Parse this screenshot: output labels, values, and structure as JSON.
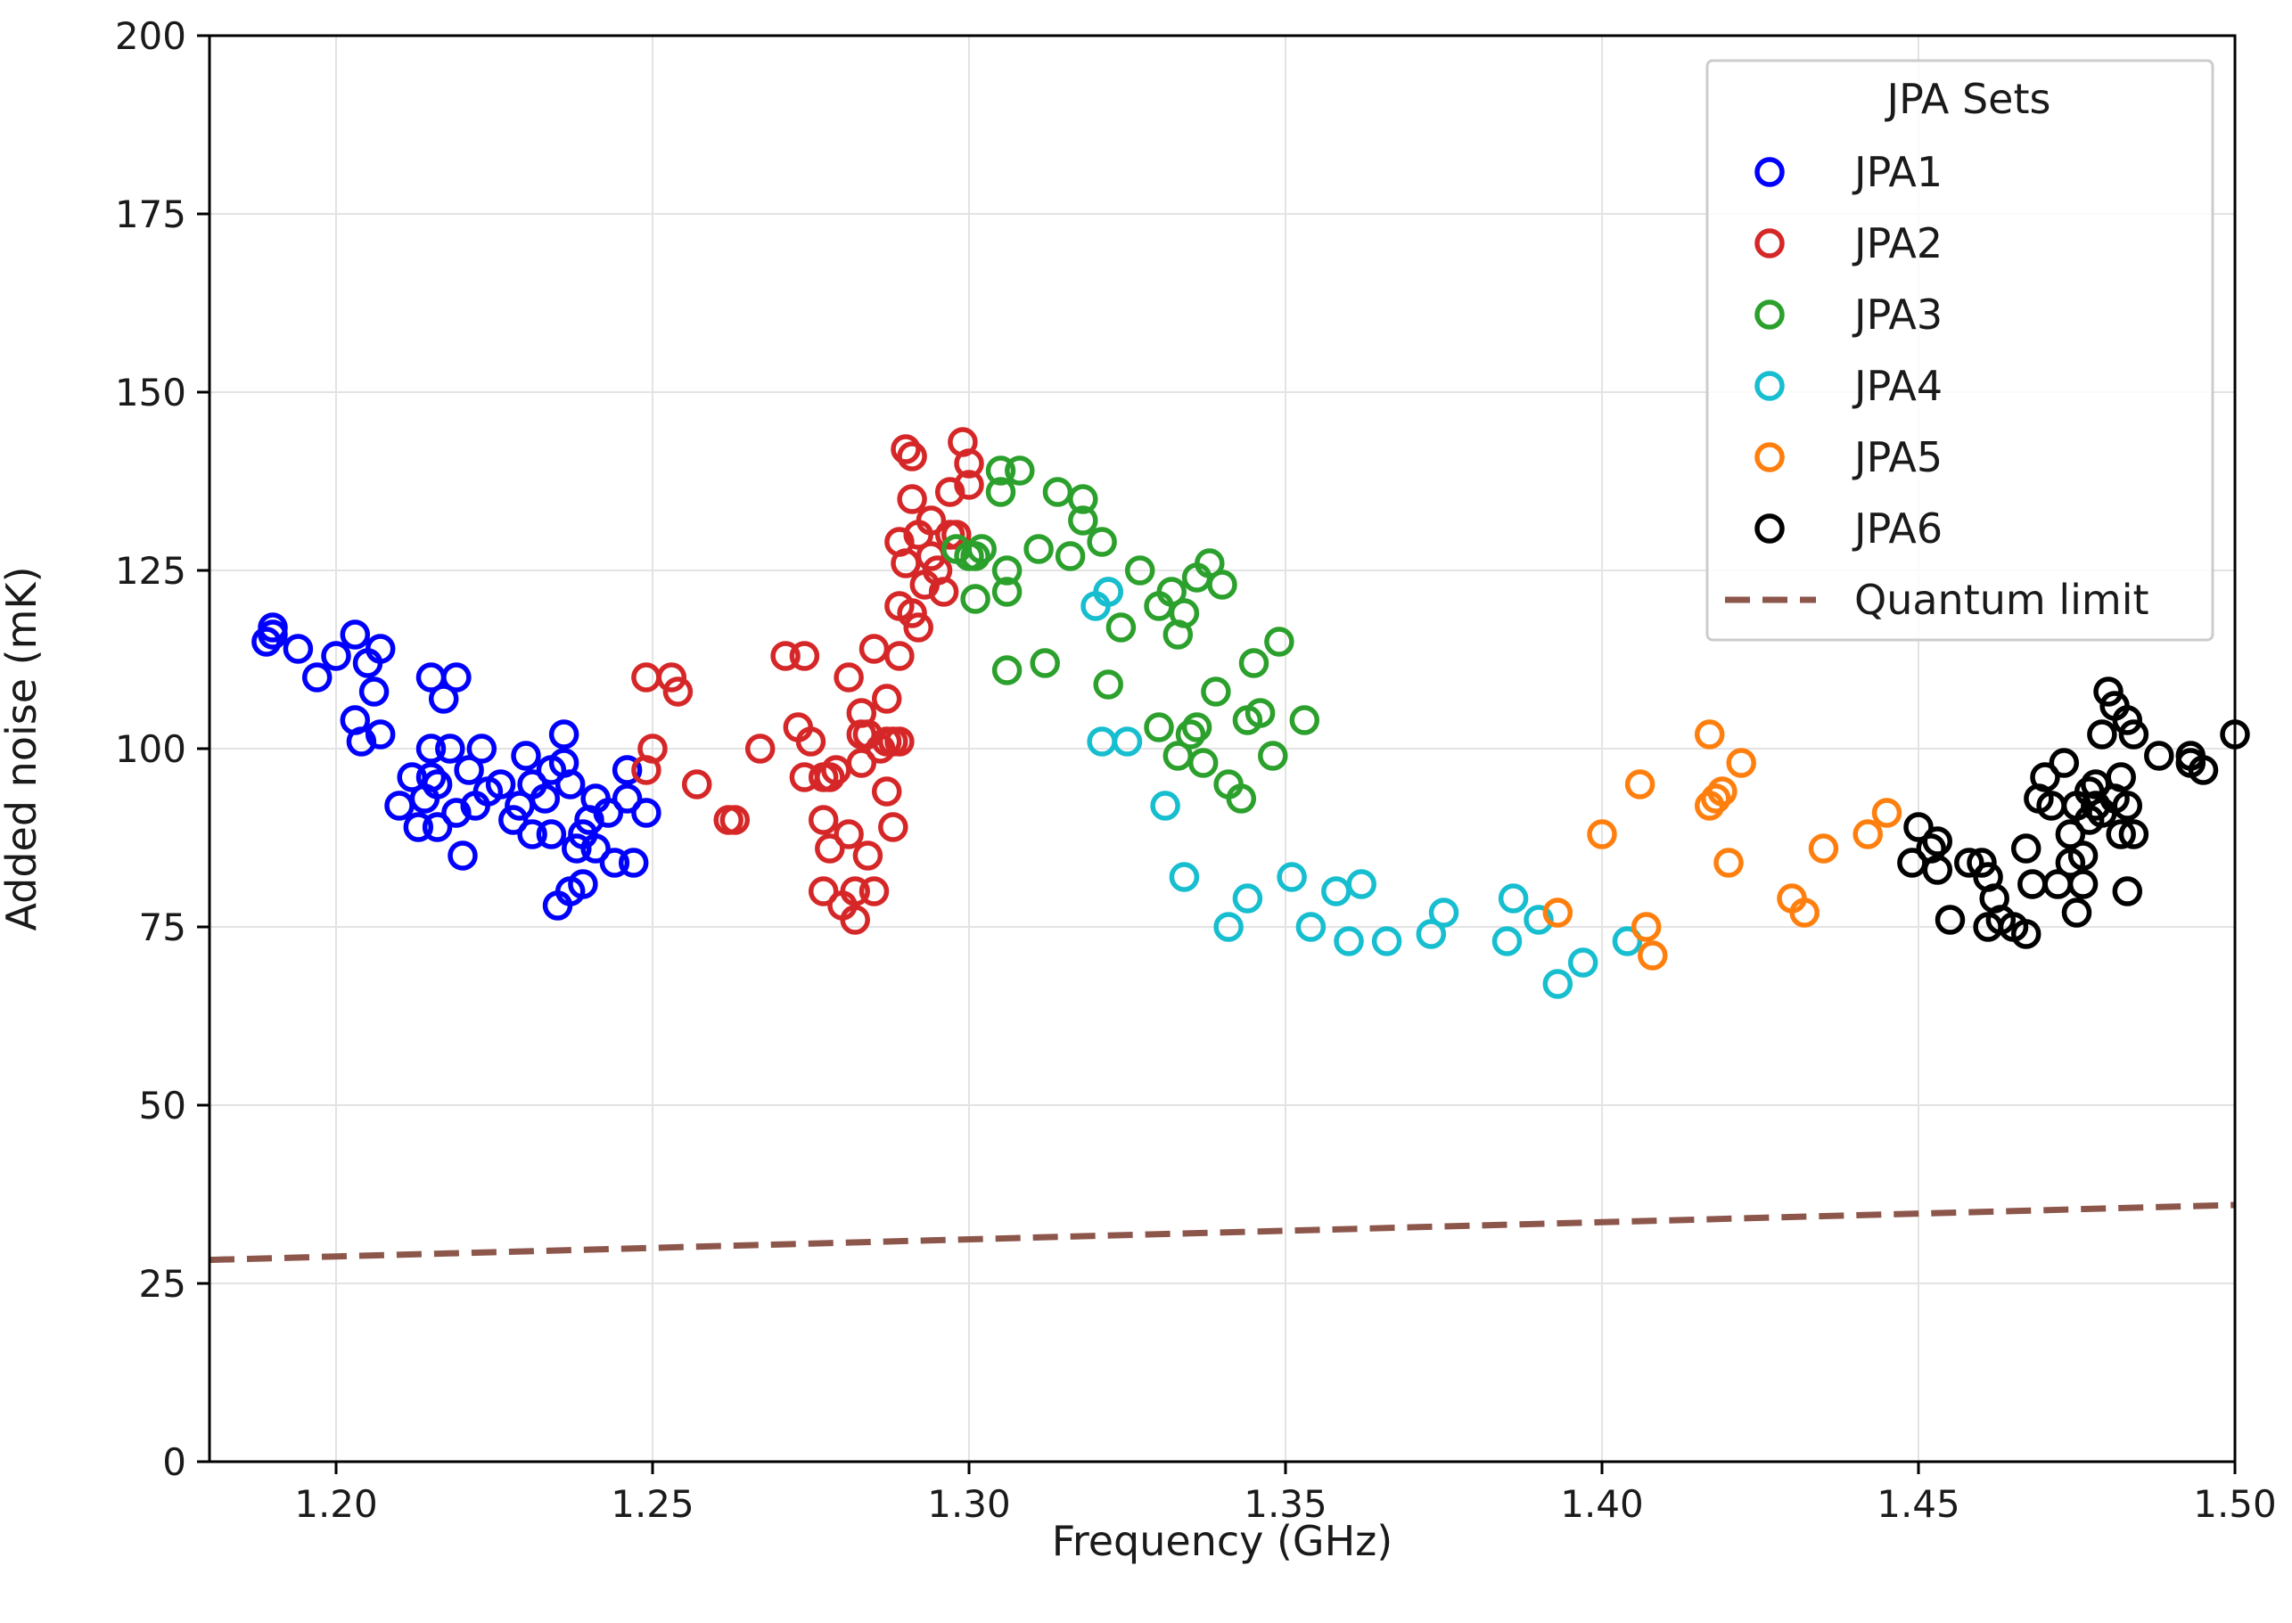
{
  "chart_data": {
    "type": "scatter",
    "title": "",
    "xlabel": "Frequency (GHz)",
    "ylabel": "Added noise (mK)",
    "xlim": [
      1.18,
      1.5
    ],
    "ylim": [
      0,
      200
    ],
    "xticks": [
      1.2,
      1.25,
      1.3,
      1.35,
      1.4,
      1.45,
      1.5
    ],
    "xtick_labels": [
      "1.20",
      "1.25",
      "1.30",
      "1.35",
      "1.40",
      "1.45",
      "1.50"
    ],
    "yticks": [
      0,
      25,
      50,
      75,
      100,
      125,
      150,
      175,
      200
    ],
    "ytick_labels": [
      "0",
      "25",
      "50",
      "75",
      "100",
      "125",
      "150",
      "175",
      "200"
    ],
    "grid": true,
    "legend": {
      "title": "JPA Sets",
      "position": "top-right"
    },
    "series": [
      {
        "name": "JPA1",
        "color": "#0000ff",
        "marker": "open-circle",
        "points": [
          [
            1.189,
            115
          ],
          [
            1.19,
            116
          ],
          [
            1.19,
            117
          ],
          [
            1.194,
            114
          ],
          [
            1.197,
            110
          ],
          [
            1.2,
            113
          ],
          [
            1.203,
            116
          ],
          [
            1.205,
            112
          ],
          [
            1.207,
            114
          ],
          [
            1.206,
            108
          ],
          [
            1.203,
            104
          ],
          [
            1.204,
            101
          ],
          [
            1.207,
            102
          ],
          [
            1.21,
            92
          ],
          [
            1.212,
            96
          ],
          [
            1.213,
            89
          ],
          [
            1.214,
            93
          ],
          [
            1.215,
            96
          ],
          [
            1.215,
            100
          ],
          [
            1.216,
            95
          ],
          [
            1.216,
            89
          ],
          [
            1.217,
            107
          ],
          [
            1.215,
            110
          ],
          [
            1.219,
            110
          ],
          [
            1.218,
            100
          ],
          [
            1.219,
            91
          ],
          [
            1.22,
            85
          ],
          [
            1.221,
            97
          ],
          [
            1.222,
            92
          ],
          [
            1.223,
            100
          ],
          [
            1.224,
            94
          ],
          [
            1.226,
            95
          ],
          [
            1.228,
            90
          ],
          [
            1.229,
            92
          ],
          [
            1.23,
            99
          ],
          [
            1.231,
            95
          ],
          [
            1.231,
            88
          ],
          [
            1.233,
            93
          ],
          [
            1.234,
            88
          ],
          [
            1.234,
            97
          ],
          [
            1.236,
            102
          ],
          [
            1.236,
            98
          ],
          [
            1.237,
            95
          ],
          [
            1.237,
            80
          ],
          [
            1.238,
            86
          ],
          [
            1.239,
            81
          ],
          [
            1.239,
            88
          ],
          [
            1.24,
            90
          ],
          [
            1.241,
            86
          ],
          [
            1.241,
            93
          ],
          [
            1.235,
            78
          ],
          [
            1.243,
            91
          ],
          [
            1.244,
            84
          ],
          [
            1.246,
            97
          ],
          [
            1.246,
            93
          ],
          [
            1.247,
            84
          ],
          [
            1.249,
            91
          ]
        ]
      },
      {
        "name": "JPA2",
        "color": "#d62728",
        "marker": "open-circle",
        "points": [
          [
            1.249,
            110
          ],
          [
            1.249,
            97
          ],
          [
            1.25,
            100
          ],
          [
            1.253,
            110
          ],
          [
            1.254,
            108
          ],
          [
            1.257,
            95
          ],
          [
            1.262,
            90
          ],
          [
            1.263,
            90
          ],
          [
            1.267,
            100
          ],
          [
            1.271,
            113
          ],
          [
            1.273,
            103
          ],
          [
            1.274,
            113
          ],
          [
            1.274,
            96
          ],
          [
            1.275,
            101
          ],
          [
            1.277,
            96
          ],
          [
            1.277,
            90
          ],
          [
            1.277,
            80
          ],
          [
            1.278,
            86
          ],
          [
            1.278,
            96
          ],
          [
            1.279,
            97
          ],
          [
            1.28,
            78
          ],
          [
            1.281,
            110
          ],
          [
            1.281,
            88
          ],
          [
            1.282,
            76
          ],
          [
            1.282,
            80
          ],
          [
            1.283,
            98
          ],
          [
            1.283,
            102
          ],
          [
            1.283,
            105
          ],
          [
            1.284,
            102
          ],
          [
            1.284,
            85
          ],
          [
            1.285,
            114
          ],
          [
            1.285,
            80
          ],
          [
            1.286,
            100
          ],
          [
            1.287,
            101
          ],
          [
            1.287,
            107
          ],
          [
            1.287,
            94
          ],
          [
            1.288,
            101
          ],
          [
            1.288,
            89
          ],
          [
            1.289,
            113
          ],
          [
            1.289,
            120
          ],
          [
            1.289,
            129
          ],
          [
            1.289,
            101
          ],
          [
            1.29,
            126
          ],
          [
            1.29,
            142
          ],
          [
            1.291,
            141
          ],
          [
            1.291,
            135
          ],
          [
            1.291,
            119
          ],
          [
            1.292,
            117
          ],
          [
            1.292,
            130
          ],
          [
            1.293,
            123
          ],
          [
            1.294,
            132
          ],
          [
            1.294,
            127
          ],
          [
            1.295,
            125
          ],
          [
            1.296,
            122
          ],
          [
            1.297,
            136
          ],
          [
            1.297,
            130
          ],
          [
            1.298,
            130
          ],
          [
            1.299,
            143
          ],
          [
            1.3,
            140
          ],
          [
            1.3,
            137
          ]
        ]
      },
      {
        "name": "JPA3",
        "color": "#2ca02c",
        "marker": "open-circle",
        "points": [
          [
            1.298,
            128
          ],
          [
            1.3,
            127
          ],
          [
            1.301,
            127
          ],
          [
            1.301,
            121
          ],
          [
            1.302,
            128
          ],
          [
            1.305,
            139
          ],
          [
            1.305,
            136
          ],
          [
            1.306,
            122
          ],
          [
            1.306,
            125
          ],
          [
            1.306,
            111
          ],
          [
            1.308,
            139
          ],
          [
            1.311,
            128
          ],
          [
            1.312,
            112
          ],
          [
            1.314,
            136
          ],
          [
            1.316,
            127
          ],
          [
            1.318,
            135
          ],
          [
            1.318,
            132
          ],
          [
            1.321,
            129
          ],
          [
            1.322,
            109
          ],
          [
            1.322,
            122
          ],
          [
            1.324,
            117
          ],
          [
            1.327,
            125
          ],
          [
            1.33,
            103
          ],
          [
            1.33,
            120
          ],
          [
            1.332,
            122
          ],
          [
            1.333,
            99
          ],
          [
            1.333,
            116
          ],
          [
            1.334,
            119
          ],
          [
            1.335,
            102
          ],
          [
            1.336,
            103
          ],
          [
            1.336,
            124
          ],
          [
            1.337,
            98
          ],
          [
            1.338,
            126
          ],
          [
            1.339,
            108
          ],
          [
            1.34,
            123
          ],
          [
            1.341,
            95
          ],
          [
            1.343,
            93
          ],
          [
            1.344,
            104
          ],
          [
            1.345,
            112
          ],
          [
            1.346,
            105
          ],
          [
            1.348,
            99
          ],
          [
            1.349,
            115
          ],
          [
            1.353,
            104
          ]
        ]
      },
      {
        "name": "JPA4",
        "color": "#17becf",
        "marker": "open-circle",
        "points": [
          [
            1.32,
            120
          ],
          [
            1.321,
            101
          ],
          [
            1.322,
            122
          ],
          [
            1.325,
            101
          ],
          [
            1.331,
            92
          ],
          [
            1.334,
            82
          ],
          [
            1.341,
            75
          ],
          [
            1.344,
            79
          ],
          [
            1.351,
            82
          ],
          [
            1.354,
            75
          ],
          [
            1.358,
            80
          ],
          [
            1.36,
            73
          ],
          [
            1.362,
            81
          ],
          [
            1.366,
            73
          ],
          [
            1.373,
            74
          ],
          [
            1.375,
            77
          ],
          [
            1.385,
            73
          ],
          [
            1.386,
            79
          ],
          [
            1.39,
            76
          ],
          [
            1.393,
            67
          ],
          [
            1.397,
            70
          ],
          [
            1.404,
            73
          ]
        ]
      },
      {
        "name": "JPA5",
        "color": "#ff7f0e",
        "marker": "open-circle",
        "points": [
          [
            1.393,
            77
          ],
          [
            1.4,
            88
          ],
          [
            1.406,
            95
          ],
          [
            1.407,
            75
          ],
          [
            1.408,
            71
          ],
          [
            1.417,
            102
          ],
          [
            1.417,
            92
          ],
          [
            1.418,
            93
          ],
          [
            1.419,
            94
          ],
          [
            1.42,
            84
          ],
          [
            1.422,
            98
          ],
          [
            1.43,
            79
          ],
          [
            1.432,
            77
          ],
          [
            1.435,
            86
          ],
          [
            1.442,
            88
          ],
          [
            1.445,
            91
          ]
        ]
      },
      {
        "name": "JPA6",
        "color": "#000000",
        "marker": "open-circle",
        "points": [
          [
            1.449,
            84
          ],
          [
            1.45,
            89
          ],
          [
            1.452,
            86
          ],
          [
            1.453,
            87
          ],
          [
            1.453,
            83
          ],
          [
            1.455,
            76
          ],
          [
            1.458,
            84
          ],
          [
            1.46,
            84
          ],
          [
            1.461,
            82
          ],
          [
            1.461,
            75
          ],
          [
            1.462,
            79
          ],
          [
            1.463,
            76
          ],
          [
            1.465,
            75
          ],
          [
            1.467,
            86
          ],
          [
            1.467,
            74
          ],
          [
            1.468,
            81
          ],
          [
            1.469,
            93
          ],
          [
            1.47,
            96
          ],
          [
            1.471,
            92
          ],
          [
            1.472,
            81
          ],
          [
            1.473,
            98
          ],
          [
            1.474,
            84
          ],
          [
            1.474,
            88
          ],
          [
            1.475,
            77
          ],
          [
            1.475,
            92
          ],
          [
            1.476,
            81
          ],
          [
            1.476,
            85
          ],
          [
            1.477,
            94
          ],
          [
            1.477,
            90
          ],
          [
            1.478,
            92
          ],
          [
            1.478,
            95
          ],
          [
            1.479,
            102
          ],
          [
            1.479,
            91
          ],
          [
            1.48,
            108
          ],
          [
            1.481,
            106
          ],
          [
            1.481,
            93
          ],
          [
            1.482,
            96
          ],
          [
            1.482,
            88
          ],
          [
            1.483,
            104
          ],
          [
            1.483,
            92
          ],
          [
            1.483,
            80
          ],
          [
            1.484,
            102
          ],
          [
            1.484,
            88
          ],
          [
            1.488,
            99
          ],
          [
            1.493,
            99
          ],
          [
            1.493,
            98
          ],
          [
            1.495,
            97
          ],
          [
            1.5,
            102
          ]
        ]
      },
      {
        "name": "Quantum limit",
        "color": "#8c564b",
        "line_style": "dashed",
        "points": [
          [
            1.18,
            28.3
          ],
          [
            1.5,
            36.0
          ]
        ]
      }
    ]
  }
}
